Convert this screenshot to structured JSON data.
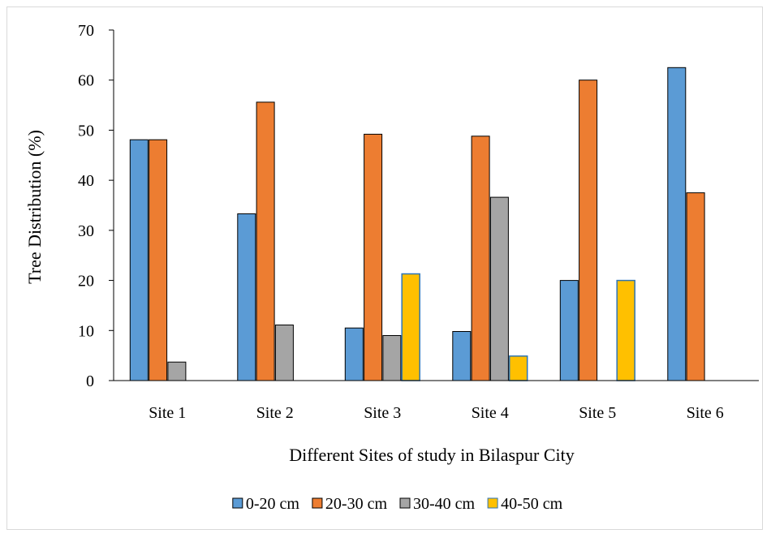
{
  "chart_data": {
    "type": "bar",
    "title": "",
    "xlabel": "Different Sites of study in Bilaspur City",
    "ylabel": "Tree Distribution (%)",
    "ylim": [
      0,
      70
    ],
    "yticks": [
      "0",
      "10",
      "20",
      "30",
      "40",
      "50",
      "60",
      "70"
    ],
    "grid": false,
    "legend_position": "bottom",
    "categories": [
      "Site 1",
      "Site 2",
      "Site 3",
      "Site 4",
      "Site 5",
      "Site 6"
    ],
    "series": [
      {
        "name": "0-20 cm",
        "color": "#5b9bd5",
        "values": [
          48.1,
          33.3,
          10.5,
          9.8,
          20.0,
          62.5
        ]
      },
      {
        "name": "20-30 cm",
        "color": "#ed7d31",
        "values": [
          48.1,
          55.6,
          49.2,
          48.8,
          60.0,
          37.5
        ]
      },
      {
        "name": "30-40 cm",
        "color": "#a5a5a5",
        "values": [
          3.7,
          11.1,
          9.0,
          36.6,
          0,
          0
        ]
      },
      {
        "name": "40-50 cm",
        "color": "#ffc000",
        "stroke": "#2e75b6",
        "values": [
          0,
          0,
          21.3,
          4.9,
          20.0,
          0
        ]
      }
    ]
  }
}
